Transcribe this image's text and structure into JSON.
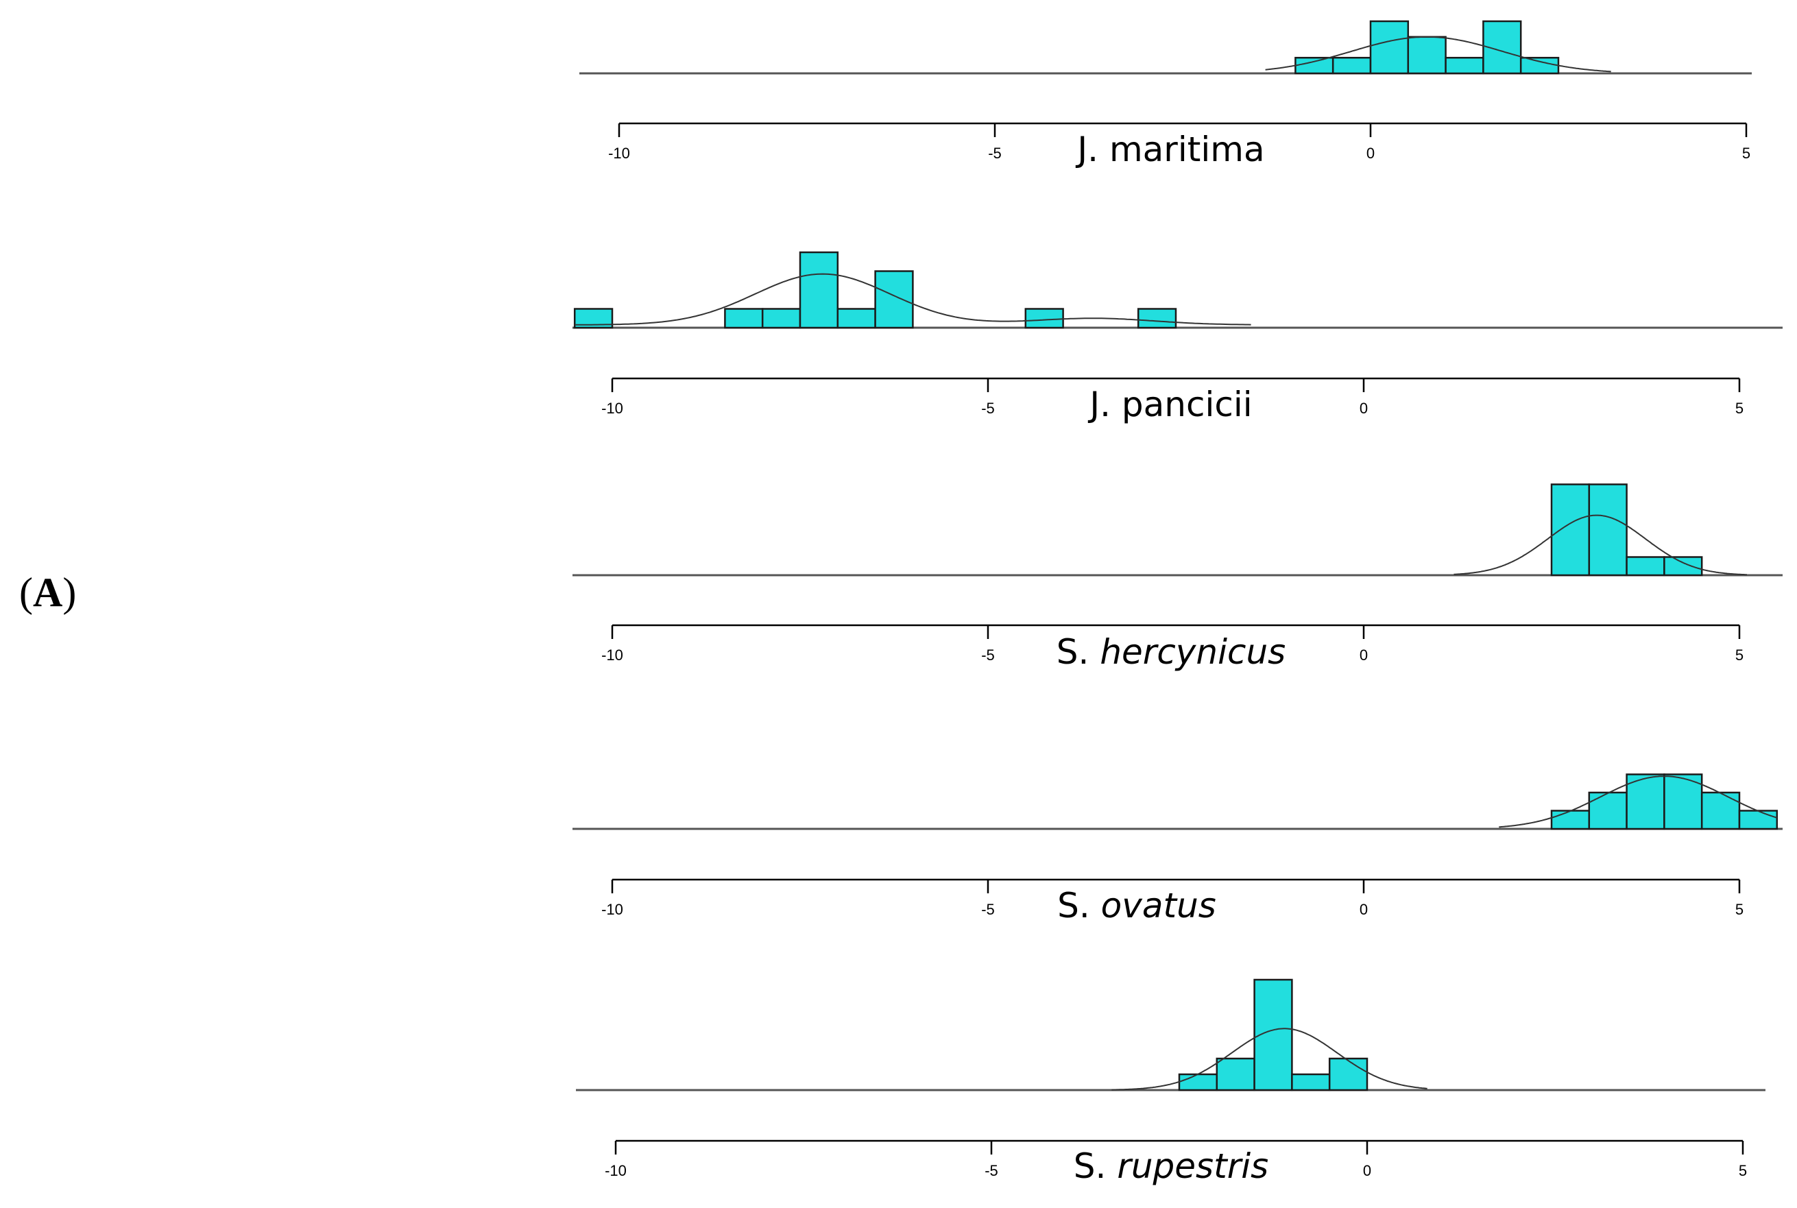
{
  "panel_label": {
    "open": "(",
    "letter": "A",
    "close": ")"
  },
  "chart_data": [
    {
      "type": "bar",
      "subtype": "histogram-with-density",
      "species": {
        "genus": "J.",
        "epithet": "maritima",
        "italic": false
      },
      "xlim": [
        -10,
        5
      ],
      "xticks": [
        "-10",
        "-5",
        "0",
        "5"
      ],
      "bin_width": 0.5,
      "bins": [
        [
          -1.0,
          0.6
        ],
        [
          -0.5,
          0.6
        ],
        [
          0.0,
          2.0
        ],
        [
          0.5,
          1.4
        ],
        [
          1.0,
          0.6
        ],
        [
          1.5,
          2.0
        ],
        [
          2.0,
          0.6
        ]
      ],
      "density": {
        "mean": 0.75,
        "sd": 1.0,
        "peak": 1.4,
        "range": [
          -1.4,
          3.2
        ]
      }
    },
    {
      "type": "bar",
      "subtype": "histogram-with-density",
      "species": {
        "genus": "J.",
        "epithet": "pancicii",
        "italic": false
      },
      "xlim": [
        -10,
        5
      ],
      "xticks": [
        "-10",
        "-5",
        "0",
        "5"
      ],
      "bin_width": 0.5,
      "bins": [
        [
          -10.5,
          1
        ],
        [
          -8.5,
          1
        ],
        [
          -8.0,
          1
        ],
        [
          -7.5,
          4
        ],
        [
          -7.0,
          1
        ],
        [
          -6.5,
          3
        ],
        [
          -4.5,
          1
        ],
        [
          -3.0,
          1
        ]
      ],
      "density": {
        "components": [
          {
            "mean": -7.2,
            "sd": 0.9,
            "peak": 2.7
          },
          {
            "mean": -3.6,
            "sd": 0.8,
            "peak": 0.35
          }
        ],
        "baseline": 0.15,
        "range": [
          -10.5,
          -1.5
        ]
      }
    },
    {
      "type": "bar",
      "subtype": "histogram-with-density",
      "species": {
        "genus": "S.",
        "epithet": "hercynicus",
        "italic": true
      },
      "xlim": [
        -10,
        5
      ],
      "xticks": [
        "-10",
        "-5",
        "0",
        "5"
      ],
      "bin_width": 0.5,
      "bins": [
        [
          2.5,
          5
        ],
        [
          3.0,
          5
        ],
        [
          3.5,
          1
        ],
        [
          4.0,
          1
        ]
      ],
      "density": {
        "mean": 3.1,
        "sd": 0.65,
        "peak": 3.3,
        "range": [
          1.2,
          5.1
        ]
      }
    },
    {
      "type": "bar",
      "subtype": "histogram-with-density",
      "species": {
        "genus": "S.",
        "epithet": "ovatus",
        "italic": true
      },
      "xlim": [
        -10,
        5
      ],
      "xticks": [
        "-10",
        "-5",
        "0",
        "5"
      ],
      "bin_width": 0.5,
      "bins": [
        [
          2.5,
          1
        ],
        [
          3.0,
          2
        ],
        [
          3.5,
          3
        ],
        [
          4.0,
          3
        ],
        [
          4.5,
          2
        ],
        [
          5.0,
          1
        ]
      ],
      "density": {
        "mean": 4.0,
        "sd": 0.85,
        "peak": 2.9,
        "range": [
          1.8,
          5.5
        ]
      }
    },
    {
      "type": "bar",
      "subtype": "histogram-with-density",
      "species": {
        "genus": "S.",
        "epithet": "rupestris",
        "italic": true
      },
      "xlim": [
        -10,
        5
      ],
      "xticks": [
        "-10",
        "-5",
        "0",
        "5"
      ],
      "bin_width": 0.5,
      "bins": [
        [
          -2.5,
          1
        ],
        [
          -2.0,
          2
        ],
        [
          -1.5,
          7
        ],
        [
          -1.0,
          1
        ],
        [
          -0.5,
          2
        ]
      ],
      "density": {
        "mean": -1.1,
        "sd": 0.7,
        "peak": 3.9,
        "range": [
          -3.4,
          0.8
        ]
      }
    }
  ]
}
